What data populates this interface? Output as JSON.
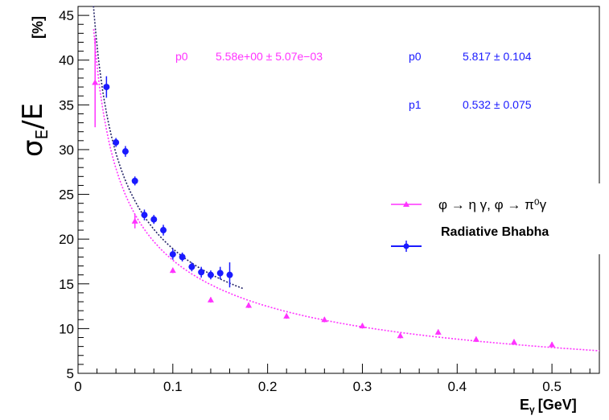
{
  "chart_data": {
    "type": "scatter",
    "ylabel_main": "σ",
    "ylabel_sub": "E",
    "ylabel_rest": "/E",
    "ylabel_unit": "[%]",
    "xlabel_main": "E",
    "xlabel_sub": "γ",
    "xlabel_unit": "[GeV]",
    "xlim": [
      0,
      0.55
    ],
    "ylim": [
      5,
      46
    ],
    "x_ticks": [
      0,
      0.1,
      0.2,
      0.3,
      0.4,
      0.5
    ],
    "x_tick_labels": [
      "0",
      "0.1",
      "0.2",
      "0.3",
      "0.4",
      "0.5"
    ],
    "y_ticks": [
      5,
      10,
      15,
      20,
      25,
      30,
      35,
      40,
      45
    ],
    "y_tick_labels": [
      "5",
      "10",
      "15",
      "20",
      "25",
      "30",
      "35",
      "40",
      "45"
    ],
    "grid": false,
    "legend_position": "right",
    "series": [
      {
        "name": "φ → η γ, φ → π⁰γ",
        "color": "#ff33ff",
        "marker": "triangle",
        "x": [
          0.018,
          0.06,
          0.1,
          0.14,
          0.18,
          0.22,
          0.26,
          0.3,
          0.34,
          0.38,
          0.42,
          0.46,
          0.5
        ],
        "y": [
          37.5,
          22.0,
          16.5,
          13.2,
          12.6,
          11.4,
          11.0,
          10.3,
          9.2,
          9.6,
          8.8,
          8.5,
          8.2
        ],
        "yerr": [
          5.0,
          0.8,
          0.3,
          0.3,
          0.3,
          0.3,
          0.3,
          0.3,
          0.3,
          0.3,
          0.3,
          0.3,
          0.3
        ],
        "fit": {
          "p0": 5.58,
          "func": "p0/sqrt(x)",
          "xrange": [
            0.012,
            0.55
          ]
        }
      },
      {
        "name": "Radiative Bhabha",
        "color": "#1a1aff",
        "marker": "circle",
        "x": [
          0.03,
          0.04,
          0.05,
          0.06,
          0.07,
          0.08,
          0.09,
          0.1,
          0.11,
          0.12,
          0.13,
          0.14,
          0.15,
          0.16
        ],
        "y": [
          37.0,
          30.8,
          29.8,
          26.5,
          22.7,
          22.2,
          21.0,
          18.3,
          18.0,
          16.9,
          16.3,
          16.0,
          16.2,
          16.0
        ],
        "yerr": [
          1.2,
          0.5,
          0.6,
          0.5,
          0.6,
          0.5,
          0.6,
          0.6,
          0.5,
          0.5,
          0.6,
          0.5,
          0.7,
          1.4
        ],
        "fit": {
          "p0": 5.817,
          "p1": 0.532,
          "func": "p0/sqrt(x)+p1",
          "xrange": [
            0.015,
            0.175
          ]
        }
      }
    ],
    "fit_results": {
      "magenta_label": "p0",
      "magenta_value": "5.58e+00 ± 5.07e−03",
      "blue_p0_label": "p0",
      "blue_p0_value": "5.817 ± 0.104",
      "blue_p1_label": "p1",
      "blue_p1_value": "0.532 ± 0.075"
    }
  }
}
